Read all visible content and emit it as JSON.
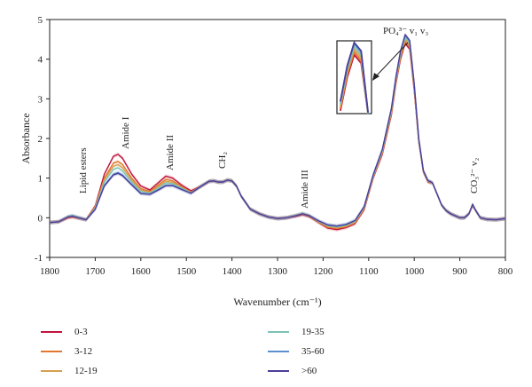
{
  "chart_data": {
    "type": "line",
    "title": "",
    "xlabel": "Wavenumber (cm⁻¹)",
    "ylabel": "Absorbance",
    "xlim": [
      1800,
      800
    ],
    "ylim": [
      -1,
      5
    ],
    "x_ticks": [
      "1800",
      "1700",
      "1600",
      "1500",
      "1400",
      "1300",
      "1200",
      "1100",
      "1000",
      "900",
      "800"
    ],
    "y_ticks": [
      "-1",
      "0",
      "1",
      "2",
      "3",
      "4",
      "5"
    ],
    "annotations": [
      {
        "text": "Lipid esters",
        "x": 1745
      },
      {
        "text": "Amide I",
        "x": 1655
      },
      {
        "text": "Amide II",
        "x": 1545
      },
      {
        "text": "CH₂",
        "x": 1440
      },
      {
        "text": "Amide III",
        "x": 1245
      },
      {
        "text": "PO₄³⁻ v₁ v₃",
        "x": 1020
      },
      {
        "text": "CO₃²⁻ v₂",
        "x": 872
      }
    ],
    "x": [
      1800,
      1780,
      1760,
      1750,
      1740,
      1720,
      1700,
      1680,
      1660,
      1650,
      1640,
      1620,
      1600,
      1580,
      1560,
      1545,
      1530,
      1510,
      1490,
      1470,
      1450,
      1440,
      1430,
      1420,
      1410,
      1400,
      1390,
      1380,
      1360,
      1340,
      1320,
      1300,
      1280,
      1260,
      1245,
      1230,
      1210,
      1190,
      1170,
      1150,
      1130,
      1110,
      1090,
      1070,
      1050,
      1040,
      1030,
      1020,
      1010,
      1000,
      990,
      980,
      970,
      960,
      950,
      940,
      930,
      920,
      910,
      900,
      890,
      880,
      872,
      865,
      855,
      840,
      820,
      800
    ],
    "series": [
      {
        "name": "0-3",
        "color": "#c0143c",
        "values": [
          -0.12,
          -0.1,
          0.0,
          0.02,
          0.0,
          -0.05,
          0.3,
          1.1,
          1.55,
          1.6,
          1.5,
          1.1,
          0.8,
          0.7,
          0.9,
          1.05,
          1.0,
          0.82,
          0.68,
          0.78,
          0.92,
          0.93,
          0.9,
          0.9,
          0.95,
          0.93,
          0.8,
          0.55,
          0.22,
          0.1,
          0.02,
          -0.02,
          0.0,
          0.04,
          0.08,
          0.03,
          -0.12,
          -0.26,
          -0.3,
          -0.25,
          -0.15,
          0.2,
          1.0,
          1.6,
          2.6,
          3.4,
          4.0,
          4.4,
          4.25,
          3.2,
          1.9,
          1.15,
          0.9,
          0.88,
          0.6,
          0.32,
          0.18,
          0.1,
          0.05,
          0.0,
          0.0,
          0.1,
          0.3,
          0.18,
          0.0,
          -0.04,
          -0.05,
          -0.02
        ]
      },
      {
        "name": "3-12",
        "color": "#e0772e",
        "values": [
          -0.12,
          -0.1,
          0.01,
          0.03,
          0.0,
          -0.05,
          0.28,
          1.0,
          1.38,
          1.42,
          1.34,
          1.0,
          0.73,
          0.66,
          0.84,
          0.97,
          0.93,
          0.78,
          0.65,
          0.78,
          0.92,
          0.93,
          0.9,
          0.9,
          0.95,
          0.93,
          0.8,
          0.55,
          0.22,
          0.1,
          0.02,
          -0.02,
          0.0,
          0.05,
          0.09,
          0.04,
          -0.11,
          -0.24,
          -0.27,
          -0.23,
          -0.13,
          0.22,
          1.02,
          1.63,
          2.64,
          3.44,
          4.05,
          4.45,
          4.3,
          3.24,
          1.92,
          1.16,
          0.91,
          0.88,
          0.6,
          0.32,
          0.18,
          0.1,
          0.05,
          0.0,
          0.0,
          0.1,
          0.31,
          0.18,
          0.0,
          -0.04,
          -0.05,
          -0.02
        ]
      },
      {
        "name": "12-19",
        "color": "#d4a050",
        "values": [
          -0.12,
          -0.1,
          0.02,
          0.04,
          0.01,
          -0.05,
          0.26,
          0.96,
          1.3,
          1.34,
          1.26,
          0.95,
          0.7,
          0.64,
          0.8,
          0.92,
          0.89,
          0.76,
          0.64,
          0.78,
          0.92,
          0.93,
          0.9,
          0.9,
          0.95,
          0.93,
          0.8,
          0.55,
          0.22,
          0.1,
          0.02,
          -0.02,
          0.0,
          0.06,
          0.1,
          0.05,
          -0.1,
          -0.22,
          -0.25,
          -0.21,
          -0.11,
          0.24,
          1.04,
          1.66,
          2.68,
          3.48,
          4.1,
          4.5,
          4.35,
          3.28,
          1.94,
          1.17,
          0.92,
          0.88,
          0.6,
          0.32,
          0.18,
          0.1,
          0.05,
          0.0,
          0.0,
          0.1,
          0.32,
          0.18,
          0.0,
          -0.04,
          -0.05,
          -0.02
        ]
      },
      {
        "name": "19-35",
        "color": "#7dc2b8",
        "values": [
          -0.12,
          -0.1,
          0.03,
          0.06,
          0.02,
          -0.05,
          0.24,
          0.9,
          1.22,
          1.26,
          1.18,
          0.9,
          0.66,
          0.62,
          0.76,
          0.88,
          0.86,
          0.74,
          0.63,
          0.78,
          0.92,
          0.93,
          0.9,
          0.9,
          0.95,
          0.93,
          0.8,
          0.55,
          0.22,
          0.1,
          0.02,
          -0.02,
          0.0,
          0.06,
          0.11,
          0.05,
          -0.09,
          -0.2,
          -0.23,
          -0.19,
          -0.09,
          0.26,
          1.06,
          1.69,
          2.72,
          3.52,
          4.15,
          4.55,
          4.4,
          3.32,
          1.96,
          1.18,
          0.93,
          0.88,
          0.6,
          0.32,
          0.18,
          0.1,
          0.05,
          0.0,
          0.0,
          0.1,
          0.33,
          0.18,
          0.0,
          -0.04,
          -0.05,
          -0.02
        ]
      },
      {
        "name": "35-60",
        "color": "#5b8fcf",
        "values": [
          -0.12,
          -0.1,
          0.02,
          0.05,
          0.01,
          -0.05,
          0.22,
          0.82,
          1.1,
          1.14,
          1.08,
          0.84,
          0.62,
          0.6,
          0.72,
          0.82,
          0.82,
          0.72,
          0.62,
          0.78,
          0.92,
          0.93,
          0.9,
          0.9,
          0.95,
          0.93,
          0.8,
          0.55,
          0.22,
          0.1,
          0.02,
          -0.02,
          0.0,
          0.05,
          0.1,
          0.05,
          -0.08,
          -0.18,
          -0.21,
          -0.17,
          -0.07,
          0.28,
          1.08,
          1.72,
          2.76,
          3.56,
          4.2,
          4.6,
          4.45,
          3.36,
          1.98,
          1.19,
          0.94,
          0.88,
          0.6,
          0.32,
          0.18,
          0.1,
          0.05,
          0.0,
          0.0,
          0.1,
          0.34,
          0.18,
          0.0,
          -0.04,
          -0.05,
          -0.02
        ]
      },
      {
        "name": ">60",
        "color": "#4b3f9a",
        "values": [
          -0.12,
          -0.1,
          0.02,
          0.04,
          0.01,
          -0.05,
          0.21,
          0.8,
          1.08,
          1.12,
          1.06,
          0.83,
          0.61,
          0.59,
          0.71,
          0.81,
          0.81,
          0.71,
          0.62,
          0.78,
          0.92,
          0.93,
          0.9,
          0.9,
          0.95,
          0.93,
          0.8,
          0.55,
          0.22,
          0.1,
          0.02,
          -0.02,
          0.0,
          0.05,
          0.1,
          0.05,
          -0.08,
          -0.18,
          -0.21,
          -0.17,
          -0.07,
          0.28,
          1.09,
          1.73,
          2.77,
          3.57,
          4.21,
          4.62,
          4.47,
          3.37,
          1.99,
          1.19,
          0.94,
          0.88,
          0.6,
          0.32,
          0.18,
          0.1,
          0.05,
          0.0,
          0.0,
          0.1,
          0.34,
          0.18,
          0.0,
          -0.04,
          -0.05,
          -0.02
        ]
      }
    ],
    "inset": {
      "ylim": [
        3.35,
        4.65
      ],
      "peak_order_top_to_bottom": [
        ">60",
        "35-60",
        "19-35",
        "12-19",
        "3-12",
        "0-3"
      ]
    },
    "legend_position": "bottom"
  }
}
